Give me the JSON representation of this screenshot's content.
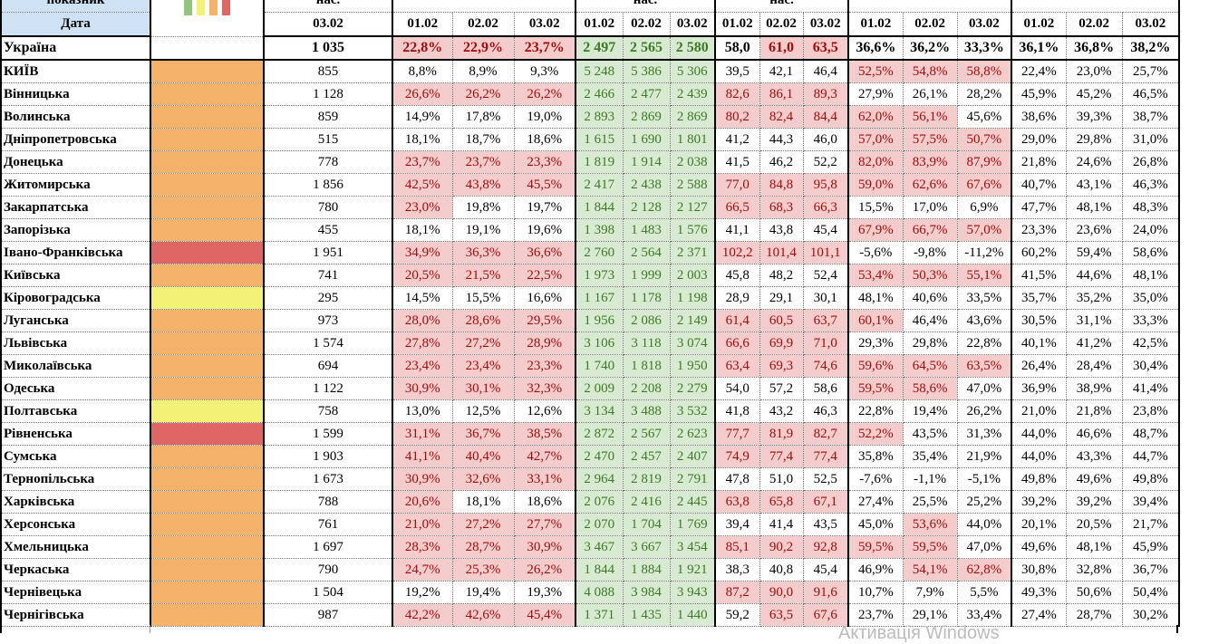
{
  "header": {
    "indicator_label": "показник",
    "date_label": "Дата",
    "legend_colors": [
      "#93c47d",
      "#f3f176",
      "#f4b26b",
      "#e06666"
    ],
    "top_labels": [
      "нас.",
      "",
      "нас.",
      "нас.",
      "",
      ""
    ],
    "first_date": "03.02",
    "dates": [
      "01.02",
      "02.02",
      "03.02"
    ]
  },
  "colors": {
    "orange": "#f4b26b",
    "red": "#e06666",
    "yellow": "#f3f176",
    "pink_fill": "#f4cccc",
    "pink_text": "#a50a0a",
    "green_fill": "#d9ead3",
    "green_text": "#3c7a23"
  },
  "ukraine": {
    "name": "Україна",
    "pop": "1 035",
    "g1": [
      "22,8%",
      "22,9%",
      "23,7%"
    ],
    "g2": [
      "2 497",
      "2 565",
      "2 580"
    ],
    "g3": [
      "58,0",
      "61,0",
      "63,5"
    ],
    "g4": [
      "36,6%",
      "36,2%",
      "33,3%"
    ],
    "g5": [
      "36,1%",
      "36,8%",
      "38,2%"
    ]
  },
  "rows": [
    {
      "name": "КИЇВ",
      "status": "orange",
      "pop": "855",
      "g1": [
        "8,8%",
        "8,9%",
        "9,3%"
      ],
      "g2": [
        "5 248",
        "5 386",
        "5 306"
      ],
      "g3": [
        "39,5",
        "42,1",
        "46,4"
      ],
      "g4": [
        "52,5%",
        "54,8%",
        "58,8%"
      ],
      "g5": [
        "22,4%",
        "23,0%",
        "25,7%"
      ]
    },
    {
      "name": "Вінницька",
      "status": "orange",
      "pop": "1 128",
      "g1": [
        "26,6%",
        "26,2%",
        "26,2%"
      ],
      "g2": [
        "2 466",
        "2 477",
        "2 439"
      ],
      "g3": [
        "82,6",
        "86,1",
        "89,3"
      ],
      "g4": [
        "27,9%",
        "26,1%",
        "28,2%"
      ],
      "g5": [
        "45,9%",
        "45,2%",
        "46,5%"
      ]
    },
    {
      "name": "Волинська",
      "status": "orange",
      "pop": "859",
      "g1": [
        "14,9%",
        "17,8%",
        "19,0%"
      ],
      "g2": [
        "2 893",
        "2 869",
        "2 869"
      ],
      "g3": [
        "80,2",
        "82,4",
        "84,4"
      ],
      "g4": [
        "62,0%",
        "56,1%",
        "45,6%"
      ],
      "g5": [
        "38,6%",
        "39,3%",
        "38,7%"
      ]
    },
    {
      "name": "Дніпропетровська",
      "status": "orange",
      "pop": "515",
      "g1": [
        "18,1%",
        "18,7%",
        "18,6%"
      ],
      "g2": [
        "1 615",
        "1 690",
        "1 801"
      ],
      "g3": [
        "41,2",
        "44,3",
        "46,0"
      ],
      "g4": [
        "57,0%",
        "57,5%",
        "50,7%"
      ],
      "g5": [
        "29,0%",
        "29,8%",
        "31,0%"
      ]
    },
    {
      "name": "Донецька",
      "status": "orange",
      "pop": "778",
      "g1": [
        "23,7%",
        "23,7%",
        "23,3%"
      ],
      "g2": [
        "1 819",
        "1 914",
        "2 038"
      ],
      "g3": [
        "41,5",
        "46,2",
        "52,2"
      ],
      "g4": [
        "82,0%",
        "83,9%",
        "87,9%"
      ],
      "g5": [
        "21,8%",
        "24,6%",
        "26,8%"
      ]
    },
    {
      "name": "Житомирська",
      "status": "orange",
      "pop": "1 856",
      "g1": [
        "42,5%",
        "43,8%",
        "45,5%"
      ],
      "g2": [
        "2 417",
        "2 438",
        "2 588"
      ],
      "g3": [
        "77,0",
        "84,8",
        "95,8"
      ],
      "g4": [
        "59,0%",
        "62,6%",
        "67,6%"
      ],
      "g5": [
        "40,7%",
        "43,1%",
        "46,3%"
      ]
    },
    {
      "name": "Закарпатська",
      "status": "orange",
      "pop": "780",
      "g1": [
        "23,0%",
        "19,8%",
        "19,7%"
      ],
      "g2": [
        "1 844",
        "2 128",
        "2 127"
      ],
      "g3": [
        "66,5",
        "68,3",
        "66,3"
      ],
      "g4": [
        "15,5%",
        "17,0%",
        "6,9%"
      ],
      "g5": [
        "47,7%",
        "48,1%",
        "48,3%"
      ]
    },
    {
      "name": "Запорізька",
      "status": "orange",
      "pop": "455",
      "g1": [
        "18,1%",
        "19,1%",
        "19,6%"
      ],
      "g2": [
        "1 398",
        "1 483",
        "1 576"
      ],
      "g3": [
        "41,1",
        "43,8",
        "45,4"
      ],
      "g4": [
        "67,9%",
        "66,7%",
        "57,0%"
      ],
      "g5": [
        "23,3%",
        "23,6%",
        "24,0%"
      ]
    },
    {
      "name": "Івано-Франківська",
      "status": "red",
      "pop": "1 951",
      "g1": [
        "34,9%",
        "36,3%",
        "36,6%"
      ],
      "g2": [
        "2 760",
        "2 564",
        "2 371"
      ],
      "g3": [
        "102,2",
        "101,4",
        "101,1"
      ],
      "g4": [
        "-5,6%",
        "-9,8%",
        "-11,2%"
      ],
      "g5": [
        "60,2%",
        "59,4%",
        "58,6%"
      ]
    },
    {
      "name": "Київська",
      "status": "orange",
      "pop": "741",
      "g1": [
        "20,5%",
        "21,5%",
        "22,5%"
      ],
      "g2": [
        "1 973",
        "1 999",
        "2 003"
      ],
      "g3": [
        "45,8",
        "48,2",
        "52,4"
      ],
      "g4": [
        "53,4%",
        "50,3%",
        "55,1%"
      ],
      "g5": [
        "41,5%",
        "44,6%",
        "48,1%"
      ]
    },
    {
      "name": "Кіровоградська",
      "status": "yellow",
      "pop": "295",
      "g1": [
        "14,5%",
        "15,5%",
        "16,6%"
      ],
      "g2": [
        "1 167",
        "1 178",
        "1 198"
      ],
      "g3": [
        "28,9",
        "29,1",
        "30,1"
      ],
      "g4": [
        "48,1%",
        "40,6%",
        "33,5%"
      ],
      "g5": [
        "35,7%",
        "35,2%",
        "35,0%"
      ]
    },
    {
      "name": "Луганська",
      "status": "orange",
      "pop": "973",
      "g1": [
        "28,0%",
        "28,6%",
        "29,5%"
      ],
      "g2": [
        "1 956",
        "2 086",
        "2 149"
      ],
      "g3": [
        "61,4",
        "60,5",
        "63,7"
      ],
      "g4": [
        "60,1%",
        "46,4%",
        "43,6%"
      ],
      "g5": [
        "30,5%",
        "31,1%",
        "33,3%"
      ]
    },
    {
      "name": "Львівська",
      "status": "orange",
      "pop": "1 574",
      "g1": [
        "27,8%",
        "27,2%",
        "28,9%"
      ],
      "g2": [
        "3 106",
        "3 118",
        "3 074"
      ],
      "g3": [
        "66,6",
        "69,9",
        "71,0"
      ],
      "g4": [
        "29,3%",
        "29,8%",
        "22,8%"
      ],
      "g5": [
        "40,1%",
        "41,2%",
        "42,5%"
      ]
    },
    {
      "name": "Миколаївська",
      "status": "orange",
      "pop": "694",
      "g1": [
        "23,4%",
        "23,4%",
        "23,3%"
      ],
      "g2": [
        "1 740",
        "1 818",
        "1 950"
      ],
      "g3": [
        "63,4",
        "69,3",
        "74,6"
      ],
      "g4": [
        "59,6%",
        "64,5%",
        "63,5%"
      ],
      "g5": [
        "26,4%",
        "28,4%",
        "30,4%"
      ]
    },
    {
      "name": "Одеська",
      "status": "orange",
      "pop": "1 122",
      "g1": [
        "30,9%",
        "30,1%",
        "32,3%"
      ],
      "g2": [
        "2 009",
        "2 208",
        "2 279"
      ],
      "g3": [
        "54,0",
        "57,2",
        "58,6"
      ],
      "g4": [
        "59,5%",
        "58,6%",
        "47,0%"
      ],
      "g5": [
        "36,9%",
        "38,9%",
        "41,4%"
      ]
    },
    {
      "name": "Полтавська",
      "status": "yellow",
      "pop": "758",
      "g1": [
        "13,0%",
        "12,5%",
        "12,6%"
      ],
      "g2": [
        "3 134",
        "3 488",
        "3 532"
      ],
      "g3": [
        "41,8",
        "43,2",
        "46,3"
      ],
      "g4": [
        "22,8%",
        "19,4%",
        "26,2%"
      ],
      "g5": [
        "21,0%",
        "21,8%",
        "23,8%"
      ]
    },
    {
      "name": "Рівненська",
      "status": "red",
      "pop": "1 599",
      "g1": [
        "31,1%",
        "36,7%",
        "38,5%"
      ],
      "g2": [
        "2 872",
        "2 567",
        "2 623"
      ],
      "g3": [
        "77,7",
        "81,9",
        "82,7"
      ],
      "g4": [
        "52,2%",
        "43,5%",
        "31,3%"
      ],
      "g5": [
        "44,0%",
        "46,6%",
        "48,7%"
      ]
    },
    {
      "name": "Сумська",
      "status": "orange",
      "pop": "1 903",
      "g1": [
        "41,1%",
        "40,4%",
        "42,7%"
      ],
      "g2": [
        "2 470",
        "2 457",
        "2 407"
      ],
      "g3": [
        "74,9",
        "77,4",
        "77,4"
      ],
      "g4": [
        "35,8%",
        "35,4%",
        "21,9%"
      ],
      "g5": [
        "44,0%",
        "43,3%",
        "44,7%"
      ]
    },
    {
      "name": "Тернопільська",
      "status": "orange",
      "pop": "1 673",
      "g1": [
        "30,9%",
        "32,6%",
        "33,1%"
      ],
      "g2": [
        "2 964",
        "2 819",
        "2 791"
      ],
      "g3": [
        "47,8",
        "51,0",
        "52,5"
      ],
      "g4": [
        "-7,6%",
        "-1,1%",
        "-5,1%"
      ],
      "g5": [
        "49,8%",
        "49,6%",
        "49,8%"
      ]
    },
    {
      "name": "Харківська",
      "status": "orange",
      "pop": "788",
      "g1": [
        "20,6%",
        "18,1%",
        "18,6%"
      ],
      "g2": [
        "2 076",
        "2 416",
        "2 445"
      ],
      "g3": [
        "63,8",
        "65,8",
        "67,1"
      ],
      "g4": [
        "27,4%",
        "25,5%",
        "25,2%"
      ],
      "g5": [
        "39,2%",
        "39,2%",
        "39,4%"
      ]
    },
    {
      "name": "Херсонська",
      "status": "orange",
      "pop": "761",
      "g1": [
        "21,0%",
        "27,2%",
        "27,7%"
      ],
      "g2": [
        "2 070",
        "1 704",
        "1 769"
      ],
      "g3": [
        "39,4",
        "41,4",
        "43,5"
      ],
      "g4": [
        "45,0%",
        "53,6%",
        "44,0%"
      ],
      "g5": [
        "20,1%",
        "20,5%",
        "21,7%"
      ]
    },
    {
      "name": "Хмельницька",
      "status": "orange",
      "pop": "1 697",
      "g1": [
        "28,3%",
        "28,7%",
        "30,9%"
      ],
      "g2": [
        "3 467",
        "3 667",
        "3 454"
      ],
      "g3": [
        "85,1",
        "90,2",
        "92,8"
      ],
      "g4": [
        "59,5%",
        "59,5%",
        "47,0%"
      ],
      "g5": [
        "49,6%",
        "48,1%",
        "45,9%"
      ]
    },
    {
      "name": "Черкаська",
      "status": "orange",
      "pop": "790",
      "g1": [
        "24,7%",
        "25,3%",
        "26,2%"
      ],
      "g2": [
        "1 844",
        "1 884",
        "1 921"
      ],
      "g3": [
        "38,3",
        "40,8",
        "45,4"
      ],
      "g4": [
        "46,9%",
        "54,1%",
        "62,8%"
      ],
      "g5": [
        "30,8%",
        "32,8%",
        "36,7%"
      ]
    },
    {
      "name": "Чернівецька",
      "status": "orange",
      "pop": "1 504",
      "g1": [
        "19,2%",
        "19,4%",
        "19,3%"
      ],
      "g2": [
        "4 088",
        "3 984",
        "3 943"
      ],
      "g3": [
        "87,2",
        "90,0",
        "91,6"
      ],
      "g4": [
        "10,7%",
        "7,9%",
        "5,5%"
      ],
      "g5": [
        "49,3%",
        "50,6%",
        "50,4%"
      ]
    },
    {
      "name": "Чернігівська",
      "status": "orange",
      "pop": "987",
      "g1": [
        "42,2%",
        "42,6%",
        "45,4%"
      ],
      "g2": [
        "1 371",
        "1 435",
        "1 440"
      ],
      "g3": [
        "59,2",
        "63,5",
        "67,6"
      ],
      "g4": [
        "23,7%",
        "29,1%",
        "33,4%"
      ],
      "g5": [
        "27,4%",
        "28,7%",
        "30,2%"
      ]
    }
  ],
  "watermark": "Активація Windows"
}
